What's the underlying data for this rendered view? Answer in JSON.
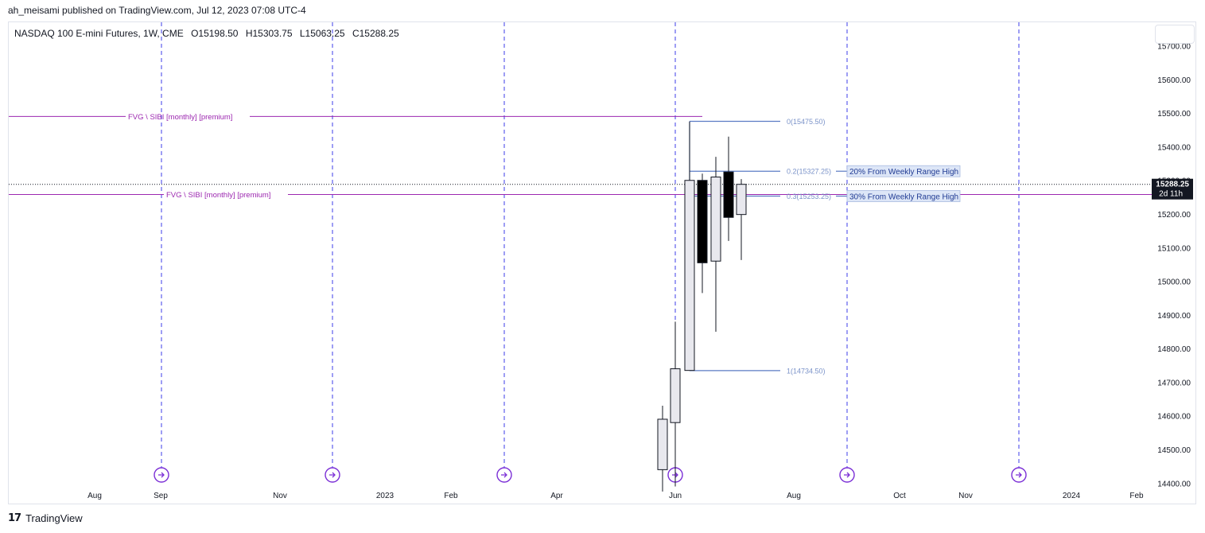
{
  "publisher": "ah_meisami published on TradingView.com, Jul 12, 2023 07:08 UTC-4",
  "legend": {
    "symbol": "NASDAQ 100 E-mini Futures, 1W, CME",
    "open": "O15198.50",
    "high": "H15303.75",
    "low": "L15063.25",
    "close": "C15288.25"
  },
  "footer": {
    "logo": "17",
    "brand": "TradingView"
  },
  "colors": {
    "up_fill": "#e8e8ee",
    "down_fill": "#000000",
    "fvg_line": "#9c27b0",
    "fib_line": "#5b7bc4",
    "vline": "#3d3de8",
    "axis_text": "#131722"
  },
  "chart_data": {
    "type": "candlestick",
    "ylim": [
      14370,
      15770
    ],
    "price_ticks": [
      "15700.00",
      "15600.00",
      "15500.00",
      "15400.00",
      "15300.00",
      "15200.00",
      "15100.00",
      "15000.00",
      "14900.00",
      "14800.00",
      "14700.00",
      "14600.00",
      "14500.00",
      "14400.00"
    ],
    "time_labels": [
      "Aug",
      "Sep",
      "Nov",
      "2023",
      "Feb",
      "Apr",
      "Jun",
      "Aug",
      "Oct",
      "Nov",
      "2024",
      "Feb"
    ],
    "current_price": {
      "value": 15288.25,
      "label": "15288.25",
      "countdown": "2d 11h"
    },
    "candles": [
      {
        "open": 14440,
        "high": 14630,
        "low": 14375,
        "close": 14590
      },
      {
        "open": 14580,
        "high": 14880,
        "low": 14390,
        "close": 14740
      },
      {
        "open": 14735,
        "high": 15475,
        "low": 14734,
        "close": 15300
      },
      {
        "open": 15300,
        "high": 15320,
        "low": 14965,
        "close": 15055
      },
      {
        "open": 15060,
        "high": 15370,
        "low": 14850,
        "close": 15310
      },
      {
        "open": 15325,
        "high": 15430,
        "low": 15120,
        "close": 15190
      },
      {
        "open": 15198.5,
        "high": 15303.75,
        "low": 15063.25,
        "close": 15288.25
      }
    ],
    "fvg_lines": [
      {
        "price": 15490,
        "label": "FVG \\ SIBI [monthly] [premium]"
      },
      {
        "price": 15258,
        "label": "FVG \\ SIBI [monthly] [premium]"
      }
    ],
    "fib_levels": [
      {
        "level": "0",
        "price": 15475.5,
        "label": "0(15475.50)"
      },
      {
        "level": "0.2",
        "price": 15327.25,
        "label": "0.2(15327.25)",
        "note": "20% From Weekly Range High"
      },
      {
        "level": "0.3",
        "price": 15253.25,
        "label": "0.3(15253.25)",
        "note": "30% From Weekly Range High"
      },
      {
        "level": "1",
        "price": 14734.5,
        "label": "1(14734.50)"
      }
    ],
    "vlines_count": 6
  }
}
